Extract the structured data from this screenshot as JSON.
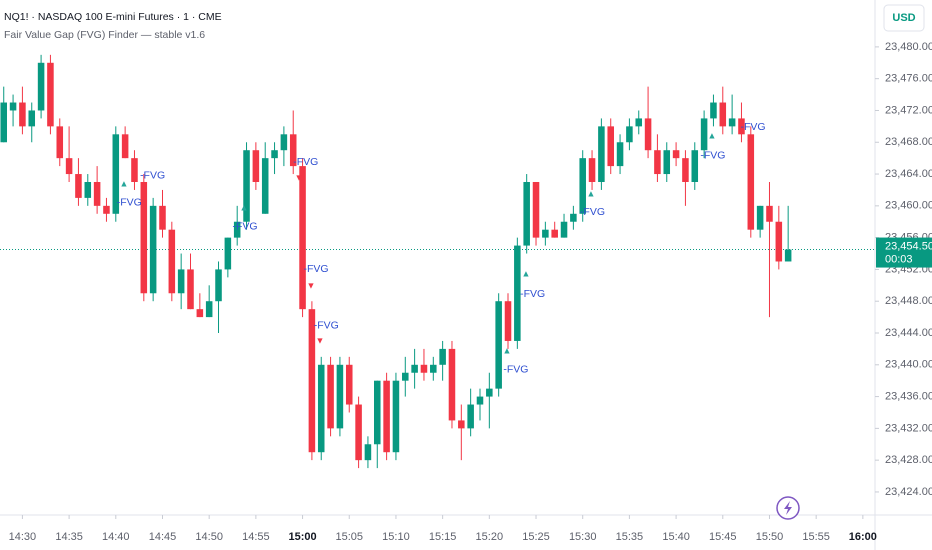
{
  "chart_data": {
    "type": "candlestick",
    "title": "NQ1! · NASDAQ 100 E-mini Futures · 1 · CME",
    "subtitle": "Fair Value Gap (FVG) Finder — stable v1.6",
    "currency": "USD",
    "up_color": "#089981",
    "down_color": "#f23645",
    "x": [
      868,
      869,
      870,
      871,
      872,
      873,
      874,
      875,
      876,
      877,
      878,
      879,
      880,
      881,
      882,
      883,
      884,
      885,
      886,
      887,
      888,
      889,
      890,
      891,
      892,
      893,
      894,
      895,
      896,
      897,
      898,
      899,
      900,
      901,
      902,
      903,
      904,
      905,
      906,
      907,
      908,
      909,
      910,
      911,
      912,
      913,
      914,
      915,
      916,
      917,
      918,
      919,
      920,
      921,
      922,
      923,
      924,
      925,
      926,
      927,
      928,
      929,
      930,
      931,
      932,
      933,
      934,
      935,
      936,
      937,
      938,
      939,
      940,
      941,
      942,
      943,
      944,
      945,
      946,
      947,
      948,
      949,
      950,
      951,
      952
    ],
    "open": [
      23468,
      23472,
      23473,
      23470,
      23472,
      23478,
      23470,
      23466,
      23464,
      23461,
      23463,
      23460,
      23459,
      23469,
      23466,
      23463,
      23449,
      23460,
      23457,
      23449,
      23452,
      23447,
      23446,
      23448,
      23452,
      23456,
      23458,
      23467,
      23459,
      23466,
      23467,
      23469,
      23465,
      23447,
      23429,
      23440,
      23432,
      23440,
      23435,
      23428,
      23430,
      23438,
      23429,
      23438,
      23439,
      23440,
      23439,
      23440,
      23442,
      23433,
      23432,
      23435,
      23436,
      23437,
      23448,
      23443,
      23455,
      23463,
      23456,
      23457,
      23456,
      23458,
      23459,
      23466,
      23463,
      23470,
      23465,
      23468,
      23470,
      23471,
      23467,
      23464,
      23467,
      23466,
      23463,
      23467,
      23471,
      23473,
      23470,
      23471,
      23469,
      23457,
      23460,
      23458,
      23453
    ],
    "high": [
      23475,
      23474,
      23475,
      23473,
      23479,
      23479,
      23471,
      23470,
      23466,
      23464,
      23465,
      23461,
      23470,
      23470,
      23467,
      23464,
      23461,
      23462,
      23458,
      23454,
      23454,
      23449,
      23450,
      23453,
      23456,
      23460,
      23468,
      23468,
      23468,
      23468,
      23470,
      23472,
      23466,
      23448,
      23441,
      23441,
      23441,
      23441,
      23436,
      23431,
      23438,
      23439,
      23439,
      23441,
      23442,
      23442,
      23441,
      23443,
      23443,
      23435,
      23437,
      23437,
      23439,
      23449,
      23449,
      23456,
      23464,
      23463,
      23458,
      23458,
      23459,
      23460,
      23467,
      23467,
      23471,
      23471,
      23469,
      23471,
      23472,
      23475,
      23469,
      23468,
      23468,
      23467,
      23468,
      23472,
      23474,
      23475,
      23474,
      23473,
      23470,
      23460,
      23463,
      23460,
      23460
    ],
    "low": [
      23468,
      23470,
      23469,
      23468,
      23471,
      23469,
      23465,
      23463,
      23460,
      23460,
      23459,
      23458,
      23458,
      23466,
      23462,
      23448,
      23448,
      23456,
      23448,
      23447,
      23447,
      23446,
      23446,
      23444,
      23451,
      23455,
      23457,
      23462,
      23459,
      23464,
      23465,
      23464,
      23446,
      23428,
      23428,
      23431,
      23431,
      23434,
      23427,
      23427,
      23427,
      23428,
      23428,
      23436,
      23437,
      23438,
      23438,
      23438,
      23432,
      23428,
      23431,
      23433,
      23432,
      23436,
      23442,
      23442,
      23454,
      23455,
      23455,
      23456,
      23456,
      23457,
      23458,
      23462,
      23462,
      23464,
      23464,
      23467,
      23469,
      23466,
      23463,
      23463,
      23465,
      23460,
      23462,
      23466,
      23470,
      23469,
      23469,
      23468,
      23456,
      23456,
      23446,
      23452,
      23453
    ],
    "close": [
      23473,
      23473,
      23470,
      23472,
      23478,
      23470,
      23466,
      23464,
      23461,
      23463,
      23460,
      23459,
      23469,
      23466,
      23463,
      23449,
      23460,
      23457,
      23449,
      23452,
      23447,
      23446,
      23448,
      23452,
      23456,
      23458,
      23467,
      23463,
      23466,
      23467,
      23469,
      23465,
      23447,
      23429,
      23440,
      23432,
      23440,
      23435,
      23428,
      23430,
      23438,
      23429,
      23438,
      23439,
      23440,
      23439,
      23440,
      23442,
      23433,
      23432,
      23435,
      23436,
      23437,
      23448,
      23443,
      23455,
      23463,
      23456,
      23457,
      23456,
      23458,
      23459,
      23466,
      23463,
      23470,
      23465,
      23468,
      23470,
      23471,
      23467,
      23464,
      23467,
      23466,
      23463,
      23467,
      23471,
      23473,
      23470,
      23471,
      23469,
      23457,
      23460,
      23458,
      23453,
      23454.5
    ],
    "xlim": [
      867.6,
      961.3
    ],
    "ylim": [
      23421.1,
      23485.9
    ],
    "xticks": [
      {
        "value": 870,
        "label": "14:30"
      },
      {
        "value": 875,
        "label": "14:35"
      },
      {
        "value": 880,
        "label": "14:40"
      },
      {
        "value": 885,
        "label": "14:45"
      },
      {
        "value": 890,
        "label": "14:50"
      },
      {
        "value": 895,
        "label": "14:55"
      },
      {
        "value": 900,
        "label": "15:00"
      },
      {
        "value": 905,
        "label": "15:05"
      },
      {
        "value": 910,
        "label": "15:10"
      },
      {
        "value": 915,
        "label": "15:15"
      },
      {
        "value": 920,
        "label": "15:20"
      },
      {
        "value": 925,
        "label": "15:25"
      },
      {
        "value": 930,
        "label": "15:30"
      },
      {
        "value": 935,
        "label": "15:35"
      },
      {
        "value": 940,
        "label": "15:40"
      },
      {
        "value": 945,
        "label": "15:45"
      },
      {
        "value": 950,
        "label": "15:50"
      },
      {
        "value": 955,
        "label": "15:55"
      },
      {
        "value": 960,
        "label": "16:00"
      }
    ],
    "yticks": [
      {
        "value": 23424,
        "label": "23,424.00"
      },
      {
        "value": 23428,
        "label": "23,428.00"
      },
      {
        "value": 23432,
        "label": "23,432.00"
      },
      {
        "value": 23436,
        "label": "23,436.00"
      },
      {
        "value": 23440,
        "label": "23,440.00"
      },
      {
        "value": 23444,
        "label": "23,444.00"
      },
      {
        "value": 23448,
        "label": "23,448.00"
      },
      {
        "value": 23452,
        "label": "23,452.00"
      },
      {
        "value": 23456,
        "label": "23,456.00"
      },
      {
        "value": 23460,
        "label": "23,460.00"
      },
      {
        "value": 23464,
        "label": "23,464.00"
      },
      {
        "value": 23468,
        "label": "23,468.00"
      },
      {
        "value": 23472,
        "label": "23,472.00"
      },
      {
        "value": 23476,
        "label": "23,476.00"
      },
      {
        "value": 23480,
        "label": "23,480.00"
      }
    ],
    "last_price": {
      "value": 23454.5,
      "label": "23,454.50"
    },
    "countdown": "00:03",
    "annotations": [
      {
        "text": "-FVG",
        "x": 880.1,
        "y": 23460.4
      },
      {
        "text": "-FVG",
        "x": 882.6,
        "y": 23463.8
      },
      {
        "text": "-FVG",
        "x": 892.5,
        "y": 23457.4
      },
      {
        "text": "-FVG",
        "x": 899.0,
        "y": 23465.5
      },
      {
        "text": "-FVG",
        "x": 900.1,
        "y": 23452.0
      },
      {
        "text": "-FVG",
        "x": 901.2,
        "y": 23444.9
      },
      {
        "text": "-FVG",
        "x": 921.5,
        "y": 23439.4
      },
      {
        "text": "-FVG",
        "x": 923.3,
        "y": 23448.9
      },
      {
        "text": "-FVG",
        "x": 929.7,
        "y": 23459.2
      },
      {
        "text": "-FVG",
        "x": 942.6,
        "y": 23466.3
      },
      {
        "text": "-FVG",
        "x": 946.9,
        "y": 23469.9
      }
    ]
  }
}
